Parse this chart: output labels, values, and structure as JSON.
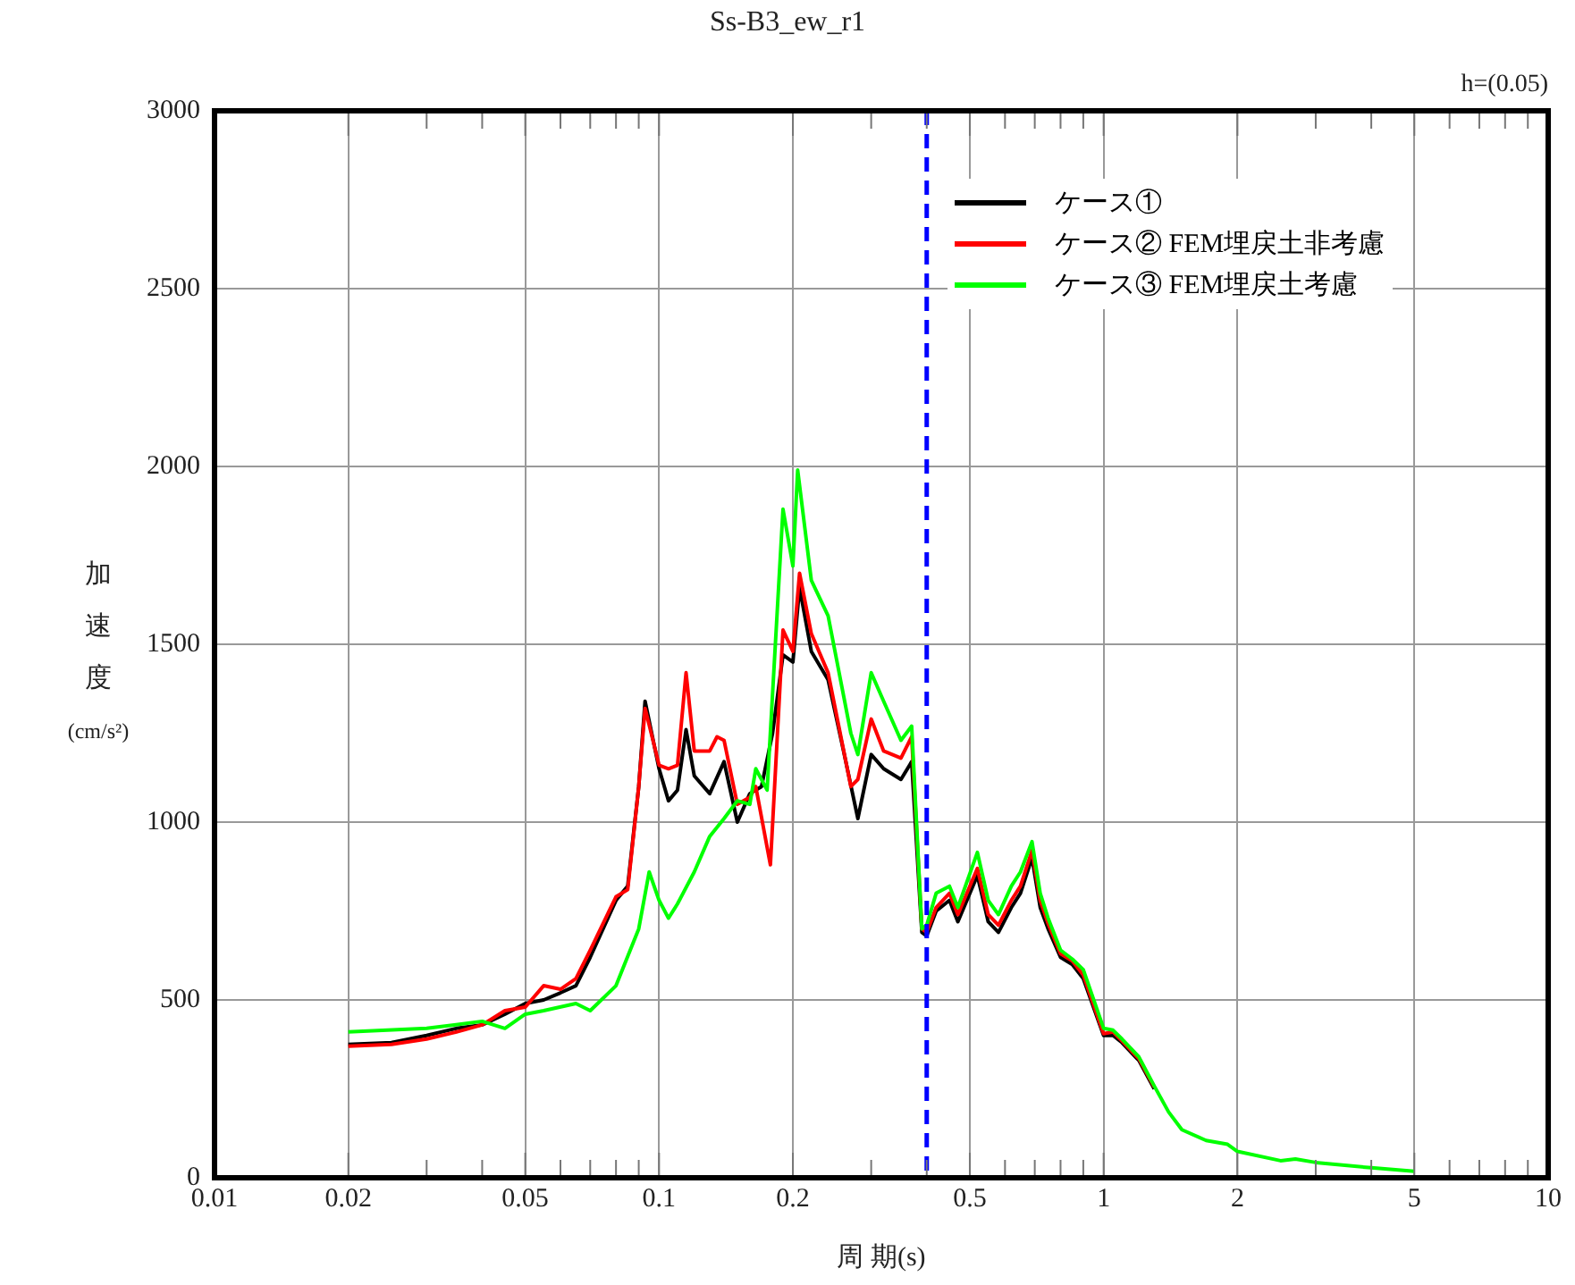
{
  "chart_data": {
    "type": "line",
    "title": "Ss-B3_ew_r1",
    "xlabel": "周 期(s)",
    "ylabel": "加速度 (cm/s²)",
    "annotations": [
      "h=(0.05)"
    ],
    "log": "x",
    "grid": true,
    "legend": "top right",
    "marker": "none",
    "line_style": "solid",
    "xlim": [
      0.01,
      10
    ],
    "xticks": [
      0.01,
      0.02,
      {
        "value": 0.03,
        "label": null
      },
      {
        "value": 0.04,
        "label": null
      },
      0.05,
      {
        "value": 0.06,
        "label": null
      },
      {
        "value": 0.07,
        "label": null
      },
      {
        "value": 0.08,
        "label": null
      },
      {
        "value": 0.09,
        "label": null
      },
      0.1,
      0.2,
      {
        "value": 0.3,
        "label": null
      },
      {
        "value": 0.4,
        "label": null
      },
      0.5,
      {
        "value": 0.6,
        "label": null
      },
      {
        "value": 0.7,
        "label": null
      },
      {
        "value": 0.8,
        "label": null
      },
      {
        "value": 0.9,
        "label": null
      },
      1,
      2,
      {
        "value": 3,
        "label": null
      },
      {
        "value": 4,
        "label": null
      },
      5,
      {
        "value": 6,
        "label": null
      },
      {
        "value": 7,
        "label": null
      },
      {
        "value": 8,
        "label": null
      },
      {
        "value": 9,
        "label": null
      },
      10
    ],
    "ylim": [
      0,
      3000
    ],
    "yticks": [
      0,
      500,
      1000,
      1500,
      2000,
      2500,
      3000
    ],
    "ref_lines": [
      {
        "axis": "x",
        "value": 0.4,
        "label": null,
        "color": "#0000ff",
        "line_style": "dashed"
      }
    ],
    "series": [
      {
        "name": "ケース①",
        "color": "#000000",
        "x": [
          0.02,
          0.025,
          0.03,
          0.035,
          0.04,
          0.045,
          0.05,
          0.055,
          0.06,
          0.065,
          0.07,
          0.08,
          0.085,
          0.09,
          0.093,
          0.1,
          0.105,
          0.11,
          0.115,
          0.12,
          0.13,
          0.14,
          0.15,
          0.16,
          0.17,
          0.18,
          0.19,
          0.2,
          0.207,
          0.22,
          0.24,
          0.26,
          0.28,
          0.3,
          0.32,
          0.35,
          0.37,
          0.39,
          0.4,
          0.42,
          0.45,
          0.47,
          0.52,
          0.55,
          0.58,
          0.62,
          0.65,
          0.69,
          0.72,
          0.75,
          0.8,
          0.85,
          0.9,
          1.0,
          1.05,
          1.1,
          1.2,
          1.3
        ],
        "values": [
          375,
          380,
          400,
          420,
          430,
          460,
          490,
          500,
          520,
          540,
          620,
          780,
          820,
          1100,
          1340,
          1150,
          1060,
          1090,
          1260,
          1130,
          1080,
          1170,
          1000,
          1080,
          1100,
          1250,
          1470,
          1450,
          1660,
          1480,
          1400,
          1200,
          1010,
          1190,
          1150,
          1120,
          1170,
          690,
          680,
          750,
          780,
          720,
          850,
          720,
          690,
          760,
          800,
          900,
          760,
          700,
          620,
          600,
          560,
          400,
          400,
          380,
          330,
          250
        ]
      },
      {
        "name": "ケース② FEM埋戻土非考慮",
        "color": "#ff0000",
        "x": [
          0.02,
          0.025,
          0.03,
          0.035,
          0.04,
          0.045,
          0.05,
          0.055,
          0.06,
          0.065,
          0.07,
          0.08,
          0.085,
          0.09,
          0.093,
          0.1,
          0.105,
          0.11,
          0.115,
          0.12,
          0.13,
          0.135,
          0.14,
          0.15,
          0.16,
          0.165,
          0.178,
          0.19,
          0.2,
          0.207,
          0.22,
          0.24,
          0.27,
          0.28,
          0.3,
          0.32,
          0.35,
          0.37,
          0.39,
          0.4,
          0.42,
          0.45,
          0.47,
          0.52,
          0.55,
          0.58,
          0.62,
          0.65,
          0.69,
          0.72,
          0.75,
          0.8,
          0.85,
          0.9,
          1.0,
          1.05,
          1.1,
          1.2,
          1.3
        ],
        "values": [
          370,
          375,
          390,
          410,
          430,
          470,
          480,
          540,
          530,
          560,
          640,
          790,
          810,
          1100,
          1320,
          1160,
          1150,
          1160,
          1420,
          1200,
          1200,
          1240,
          1230,
          1050,
          1070,
          1100,
          880,
          1540,
          1480,
          1700,
          1530,
          1420,
          1100,
          1120,
          1290,
          1200,
          1180,
          1240,
          700,
          690,
          760,
          800,
          740,
          870,
          740,
          710,
          780,
          820,
          920,
          780,
          715,
          630,
          610,
          570,
          405,
          410,
          385,
          335,
          255
        ]
      },
      {
        "name": "ケース③ FEM埋戻土考慮",
        "color": "#00ff00",
        "x": [
          0.02,
          0.03,
          0.04,
          0.045,
          0.05,
          0.055,
          0.065,
          0.07,
          0.08,
          0.09,
          0.095,
          0.1,
          0.105,
          0.11,
          0.12,
          0.13,
          0.14,
          0.15,
          0.16,
          0.165,
          0.175,
          0.19,
          0.2,
          0.205,
          0.22,
          0.24,
          0.27,
          0.28,
          0.3,
          0.32,
          0.35,
          0.37,
          0.39,
          0.4,
          0.42,
          0.45,
          0.47,
          0.52,
          0.55,
          0.58,
          0.62,
          0.65,
          0.69,
          0.72,
          0.75,
          0.8,
          0.85,
          0.9,
          1.0,
          1.05,
          1.1,
          1.2,
          1.3,
          1.4,
          1.5,
          1.7,
          1.9,
          2.0,
          2.5,
          2.7,
          3,
          4,
          5
        ],
        "values": [
          410,
          420,
          440,
          420,
          460,
          470,
          490,
          470,
          540,
          700,
          860,
          780,
          730,
          770,
          860,
          960,
          1010,
          1060,
          1050,
          1150,
          1090,
          1880,
          1720,
          1990,
          1680,
          1580,
          1250,
          1190,
          1420,
          1340,
          1230,
          1270,
          700,
          710,
          800,
          820,
          760,
          915,
          780,
          740,
          820,
          860,
          945,
          800,
          730,
          640,
          615,
          585,
          420,
          415,
          390,
          340,
          258,
          185,
          135,
          105,
          94,
          74,
          48,
          53,
          43,
          28,
          18
        ]
      }
    ]
  }
}
